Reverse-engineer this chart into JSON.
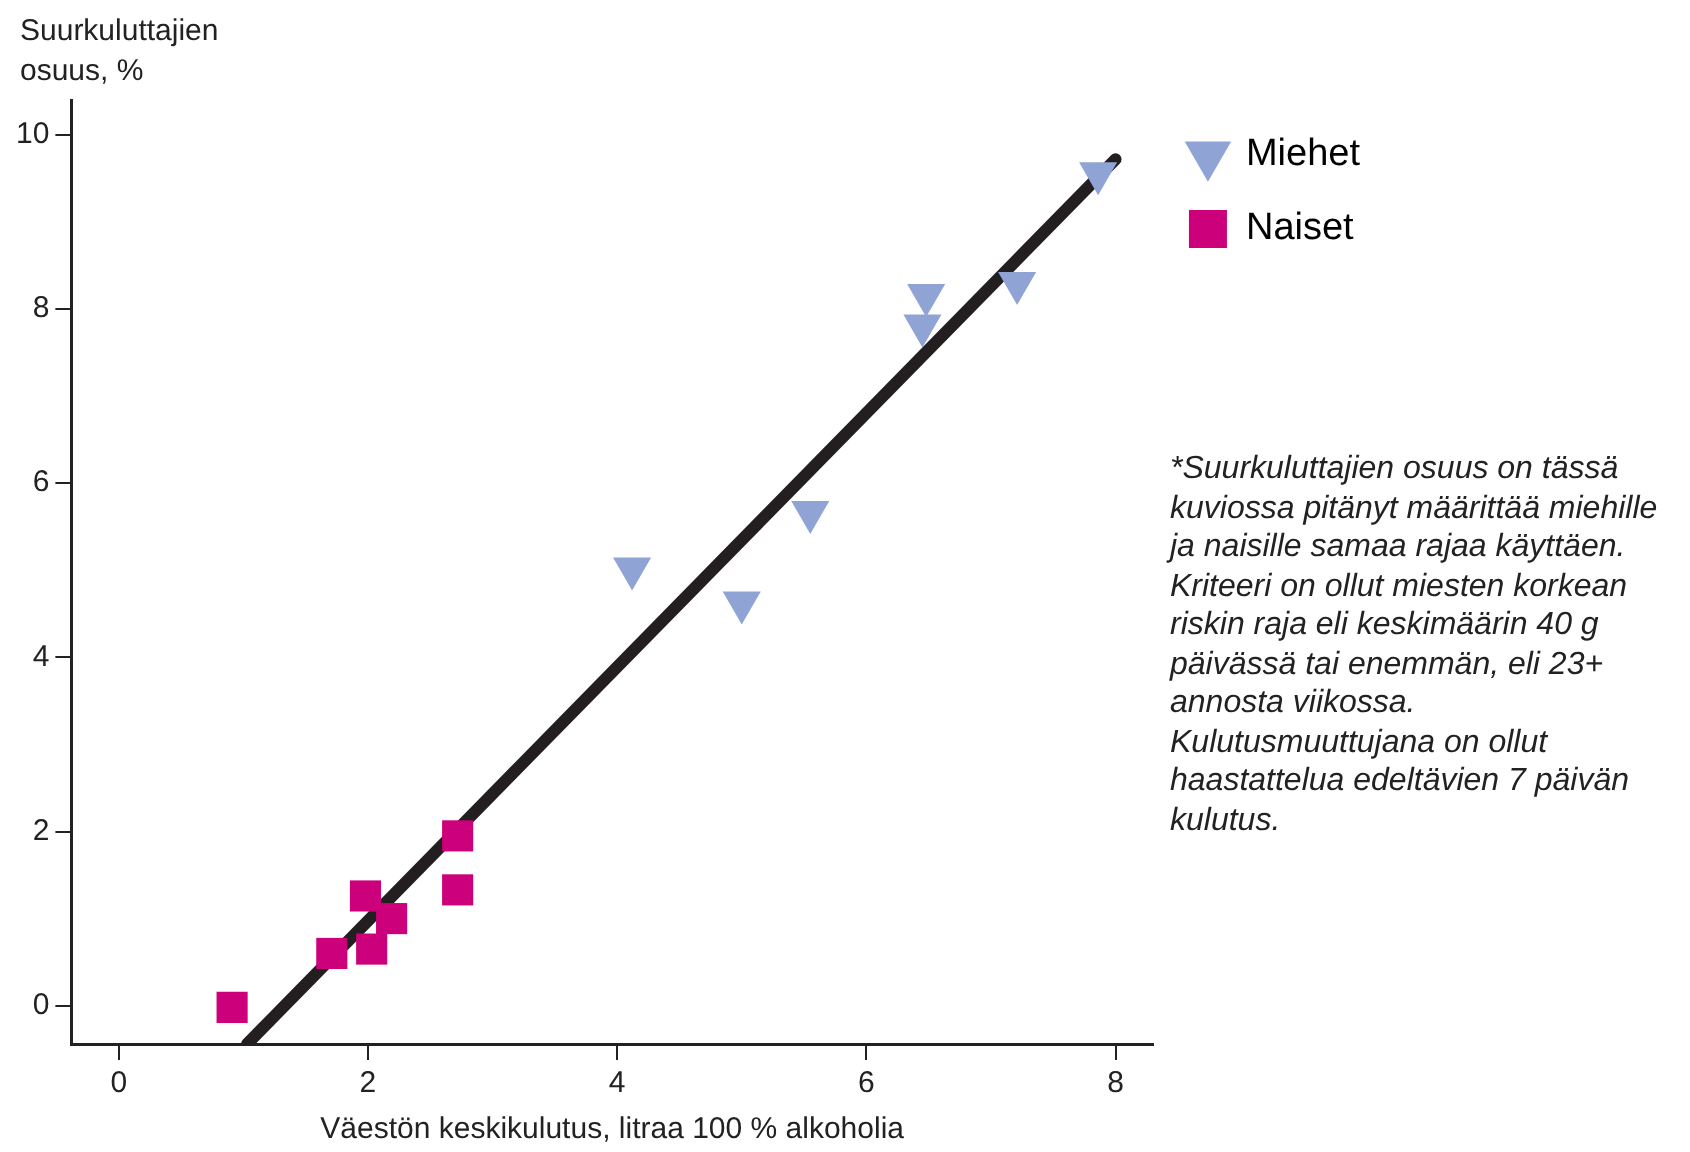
{
  "chart_data": {
    "type": "scatter",
    "xlabel": "Väestön keskikulutus, litraa 100 % alkoholia",
    "ylabel": "Suurkuluttajien osuus, %",
    "xlim": [
      -0.38,
      8.3
    ],
    "ylim": [
      -0.44,
      10.4
    ],
    "xticks": [
      0,
      2,
      4,
      6,
      8
    ],
    "yticks": [
      0,
      2,
      4,
      6,
      8,
      10
    ],
    "grid": false,
    "legend": "right",
    "series": [
      {
        "name": "Miehet",
        "color": "#8fa3d5",
        "marker": "triangle",
        "x": [
          4.12,
          5.0,
          5.55,
          6.48,
          6.45,
          7.21,
          7.86
        ],
        "values": [
          5.02,
          4.63,
          5.67,
          8.16,
          7.81,
          8.3,
          9.56
        ]
      },
      {
        "name": "Naiset",
        "color": "#cc007a",
        "marker": "square",
        "x": [
          0.91,
          1.71,
          1.98,
          2.03,
          2.19,
          2.72,
          2.72
        ],
        "values": [
          -0.02,
          0.6,
          1.26,
          0.65,
          1.0,
          1.95,
          1.33
        ]
      },
      {
        "type": "line",
        "color": "#231f20",
        "marker": "none",
        "line_style": "solid",
        "x": [
          1.03,
          8.0
        ],
        "values": [
          -0.44,
          9.72
        ]
      }
    ],
    "annotations": [
      "*Suurkuluttajien osuus on tässä kuviossa pitänyt määrittää miehille ja naisille samaa rajaa käyttäen. Kriteeri on ollut miesten korkean riskin raja eli keskimäärin 40 g päivässä tai enemmän, eli 23+ annosta viikossa. Kulutusmuuttujana on ollut haastattelua edeltävien 7 päivän kulutus."
    ]
  }
}
